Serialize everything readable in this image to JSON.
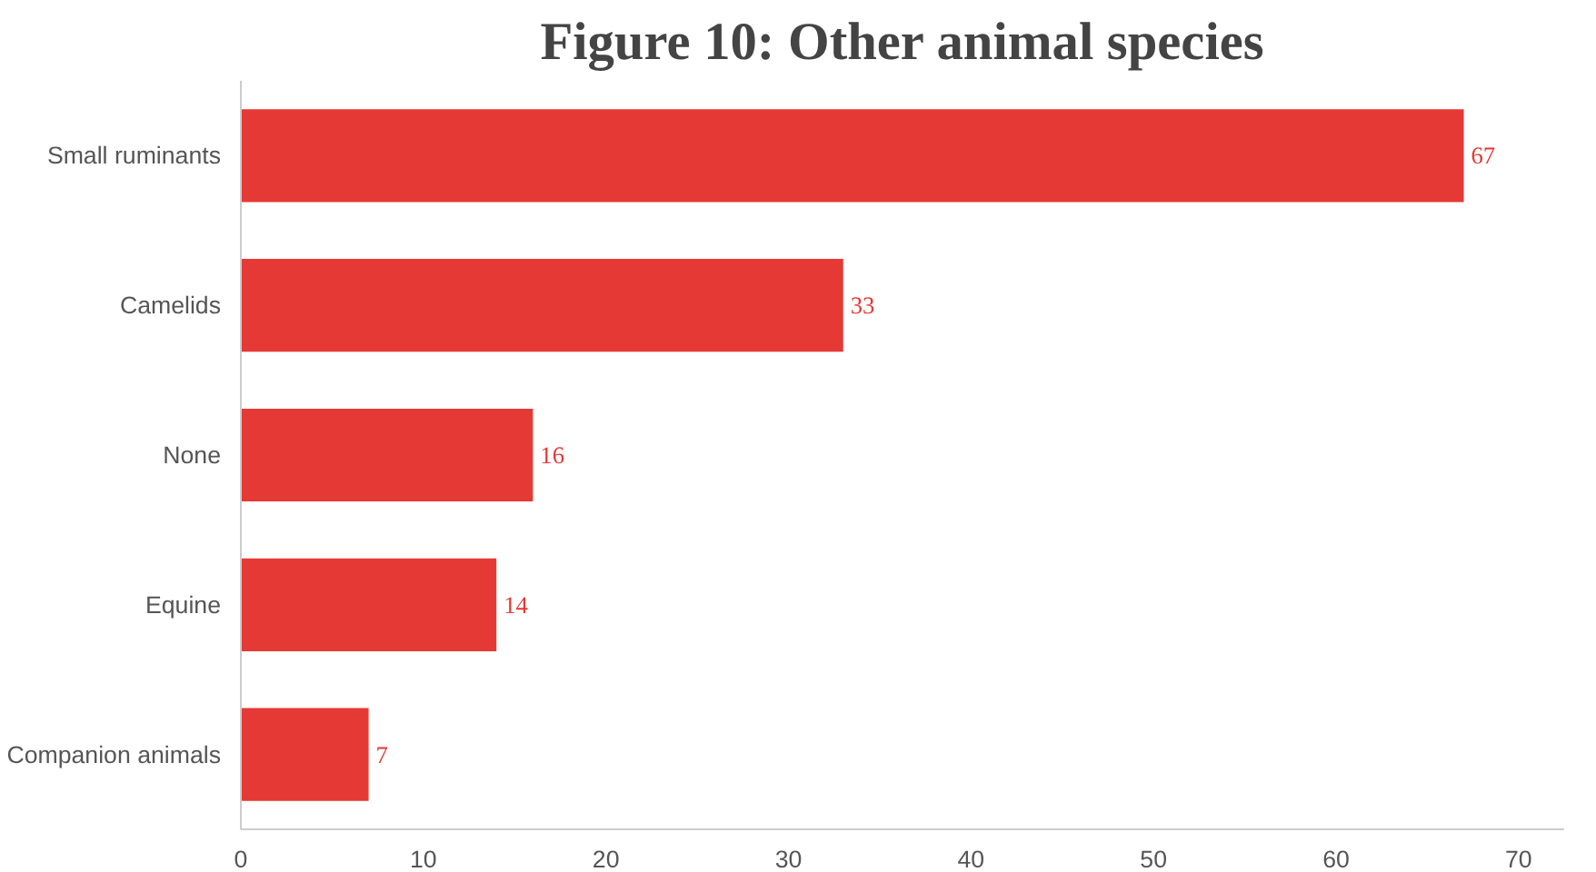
{
  "chart_data": {
    "type": "bar",
    "orientation": "horizontal",
    "title": "Figure 10: Other animal species",
    "categories": [
      "Small ruminants",
      "Camelids",
      "None",
      "Equine",
      "Companion animals"
    ],
    "values": [
      67,
      33,
      16,
      14,
      7
    ],
    "color": "#e53935",
    "xlim": [
      0,
      72.5
    ],
    "xticks": [
      0,
      10,
      20,
      30,
      40,
      50,
      60,
      70
    ],
    "grid": false,
    "data_labels": true
  }
}
